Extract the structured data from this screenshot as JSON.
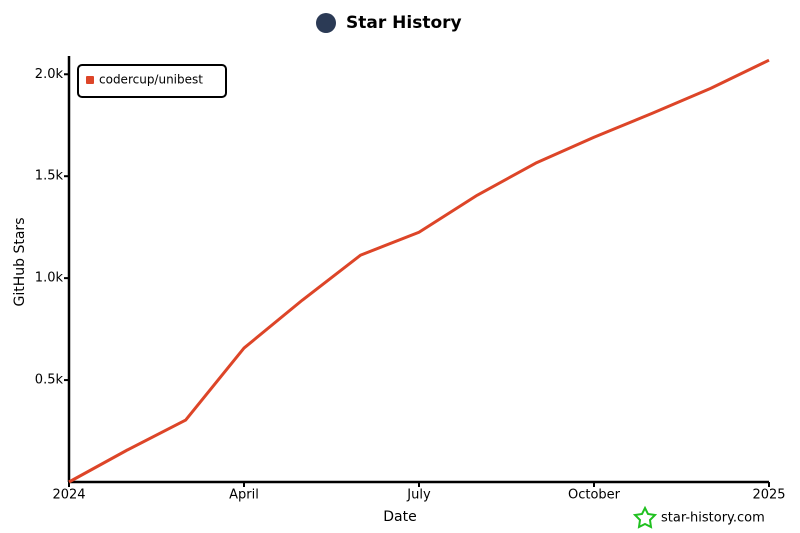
{
  "chart_data": {
    "type": "line",
    "title": "Star History",
    "x_label": "Date",
    "y_label": "GitHub Stars",
    "x": [
      "2024-01",
      "2024-02",
      "2024-03",
      "2024-04",
      "2024-05",
      "2024-06",
      "2024-07",
      "2024-08",
      "2024-09",
      "2024-10",
      "2024-11",
      "2024-12",
      "2025-01"
    ],
    "series": [
      {
        "name": "codercup/unibest",
        "color": "#dd4528",
        "values": [
          0,
          157,
          304,
          657,
          892,
          1113,
          1225,
          1407,
          1564,
          1691,
          1809,
          1931,
          2069
        ]
      }
    ],
    "xlim": [
      "2024-01",
      "2025-01"
    ],
    "xticks": [
      {
        "value": "2024-01",
        "label": "2024"
      },
      {
        "value": "2024-04",
        "label": "April"
      },
      {
        "value": "2024-07",
        "label": "July"
      },
      {
        "value": "2024-10",
        "label": "October"
      },
      {
        "value": "2025-01",
        "label": "2025"
      }
    ],
    "ylim": [
      0,
      2070
    ],
    "yticks": [
      {
        "value": 500,
        "label": "0.5k"
      },
      {
        "value": 1000,
        "label": "1.0k"
      },
      {
        "value": 1500,
        "label": "1.5k"
      },
      {
        "value": 2000,
        "label": "2.0k"
      }
    ],
    "legend": "top-left",
    "footer": "star-history.com"
  }
}
